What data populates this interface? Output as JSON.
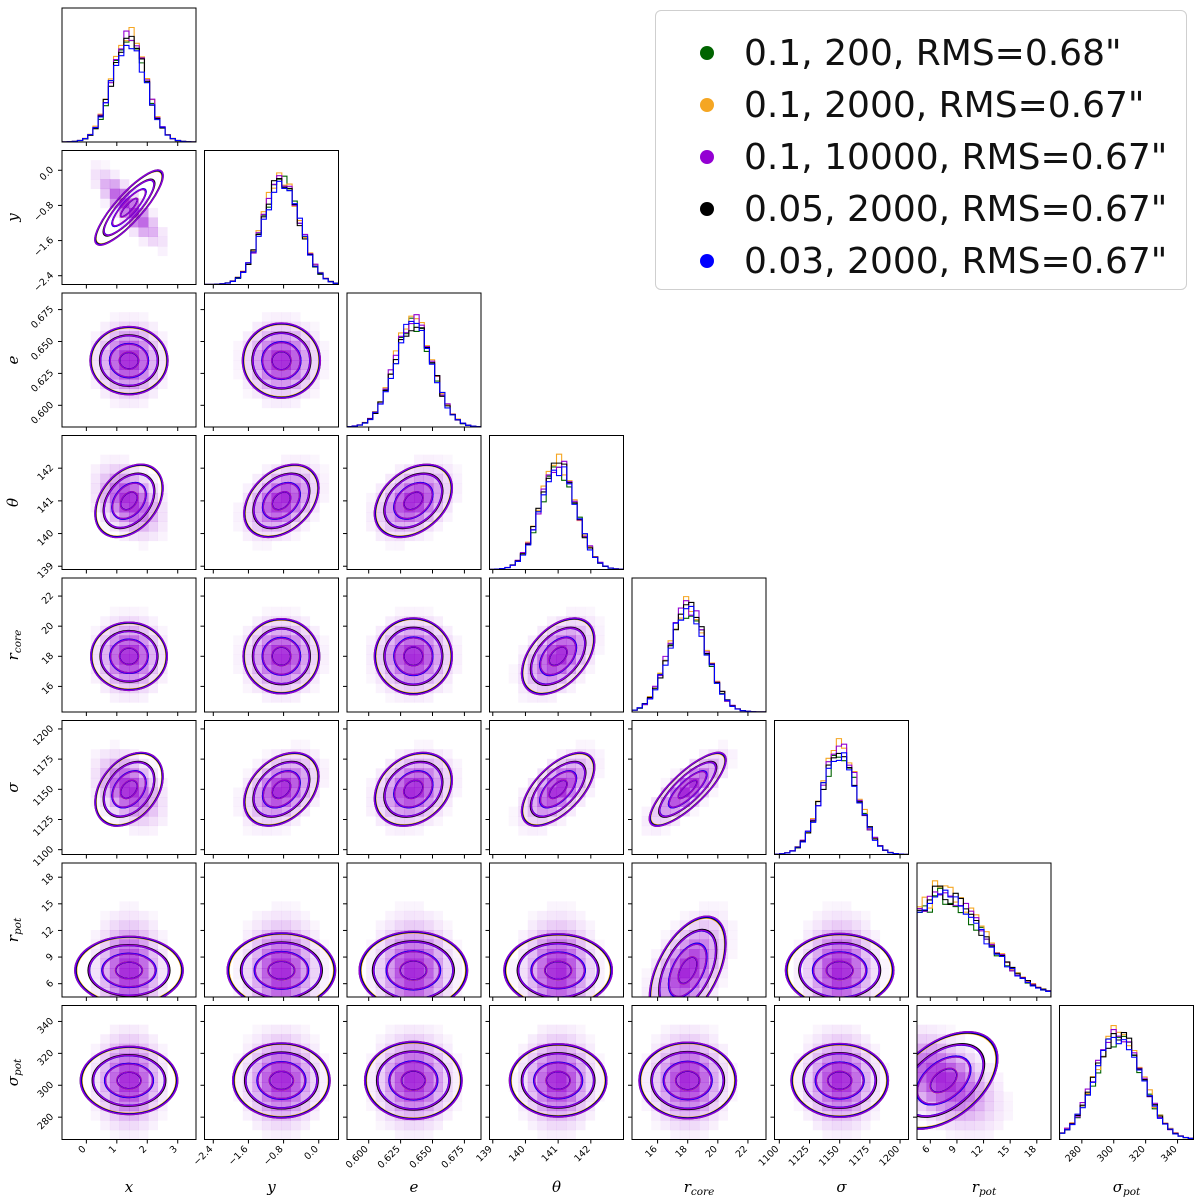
{
  "chart_data": {
    "type": "corner",
    "params": [
      {
        "key": "x",
        "label": "x",
        "range": [
          -0.8,
          3.6
        ],
        "ticks": [
          0,
          1,
          2,
          3
        ],
        "ticklabels": [
          "0",
          "1",
          "2",
          "3"
        ],
        "mean": 1.4,
        "sd": 0.55
      },
      {
        "key": "y",
        "label": "y",
        "range": [
          -2.6,
          0.45
        ],
        "ticks": [
          -2.4,
          -1.6,
          -0.8,
          0.0
        ],
        "ticklabels": [
          "−2.4",
          "−1.6",
          "−0.8",
          "0.0"
        ],
        "mean": -0.85,
        "sd": 0.42
      },
      {
        "key": "e",
        "label": "e",
        "range": [
          0.583,
          0.688
        ],
        "ticks": [
          0.6,
          0.625,
          0.65,
          0.675
        ],
        "ticklabels": [
          "0.600",
          "0.625",
          "0.650",
          "0.675"
        ],
        "mean": 0.635,
        "sd": 0.015
      },
      {
        "key": "theta",
        "label": "θ",
        "range": [
          138.9,
          143.0
        ],
        "ticks": [
          139,
          140,
          141,
          142
        ],
        "ticklabels": [
          "139",
          "140",
          "141",
          "142"
        ],
        "mean": 141.0,
        "sd": 0.55
      },
      {
        "key": "r_core",
        "label": "r",
        "sub": "core",
        "range": [
          14.3,
          23.2
        ],
        "ticks": [
          16,
          18,
          20,
          22
        ],
        "ticklabels": [
          "16",
          "18",
          "20",
          "22"
        ],
        "mean": 18.0,
        "sd": 1.25
      },
      {
        "key": "sigma",
        "label": "σ",
        "range": [
          1096,
          1207
        ],
        "ticks": [
          1100,
          1125,
          1150,
          1175,
          1200
        ],
        "ticklabels": [
          "1100",
          "1125",
          "1150",
          "1175",
          "1200"
        ],
        "mean": 1150,
        "sd": 15
      },
      {
        "key": "r_pot",
        "label": "r",
        "sub": "pot",
        "range": [
          4.5,
          19.6
        ],
        "ticks": [
          6,
          9,
          12,
          15,
          18
        ],
        "ticklabels": [
          "6",
          "9",
          "12",
          "15",
          "18"
        ],
        "mean": 7.5,
        "sd": 3.0
      },
      {
        "key": "sigma_pot",
        "label": "σ",
        "sub": "pot",
        "range": [
          266,
          350
        ],
        "ticks": [
          280,
          300,
          320,
          340
        ],
        "ticklabels": [
          "280",
          "300",
          "320",
          "340"
        ],
        "mean": 303,
        "sd": 15
      }
    ],
    "correlations": [
      {
        "i": "y",
        "j": "x",
        "rho": -0.85
      },
      {
        "i": "theta",
        "j": "x",
        "rho": -0.35
      },
      {
        "i": "theta",
        "j": "y",
        "rho": 0.35
      },
      {
        "i": "theta",
        "j": "e",
        "rho": 0.35
      },
      {
        "i": "r_core",
        "j": "theta",
        "rho": 0.45
      },
      {
        "i": "sigma",
        "j": "x",
        "rho": -0.35
      },
      {
        "i": "sigma",
        "j": "y",
        "rho": 0.35
      },
      {
        "i": "sigma",
        "j": "e",
        "rho": 0.25
      },
      {
        "i": "sigma",
        "j": "theta",
        "rho": 0.6
      },
      {
        "i": "sigma",
        "j": "r_core",
        "rho": 0.8
      },
      {
        "i": "r_pot",
        "j": "r_core",
        "rho": 0.5
      },
      {
        "i": "sigma_pot",
        "j": "r_pot",
        "rho": -0.45
      }
    ],
    "series": [
      {
        "name": "0.1, 200, RMS=0.68\"",
        "color": "#006400"
      },
      {
        "name": "0.1, 2000, RMS=0.67\"",
        "color": "#f5a623"
      },
      {
        "name": "0.1, 10000, RMS=0.67\"",
        "color": "#9400d3"
      },
      {
        "name": "0.05, 2000, RMS=0.67\"",
        "color": "#000000"
      },
      {
        "name": "0.03, 2000, RMS=0.67\"",
        "color": "#0000ff"
      }
    ],
    "extra_contour_color": "#e60000",
    "density_color": "#9400d3",
    "legend_position": "top-right",
    "grid": false
  }
}
